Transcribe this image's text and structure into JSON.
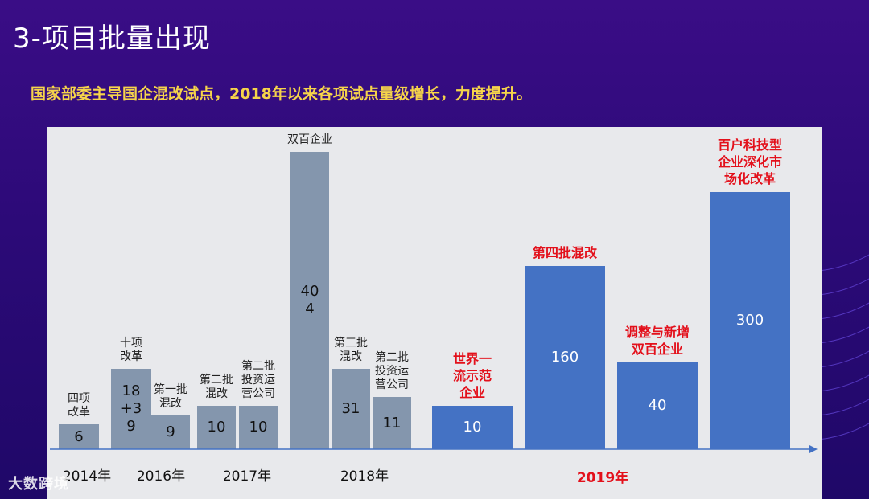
{
  "title": "3-项目批量出现",
  "subtitle": "国家部委主导国企混改试点，2018年以来各项试点量级增长，力度提升。",
  "watermark": "大数跨境",
  "chart_data": {
    "type": "bar",
    "title": "3-项目批量出现",
    "xlabel": "",
    "ylabel": "",
    "ylim": [
      0,
      404
    ],
    "grid": false,
    "bars": [
      {
        "label": "四项\n改革",
        "value": 6,
        "value_text": "6",
        "year": "2014年",
        "color": "#8496ad"
      },
      {
        "label": "十项\n改革",
        "value": 30,
        "value_text": "18\n+3\n9",
        "year": "2016年",
        "color": "#8496ad"
      },
      {
        "label": "第一批\n混改",
        "value": 9,
        "value_text": "9",
        "year": "2016年",
        "color": "#8496ad"
      },
      {
        "label": "第二批\n混改",
        "value": 10,
        "value_text": "10",
        "year": "2017年",
        "color": "#8496ad"
      },
      {
        "label": "第二批\n投资运\n营公司",
        "value": 10,
        "value_text": "10",
        "year": "2017年",
        "color": "#8496ad"
      },
      {
        "label": "双百企业",
        "value": 404,
        "value_text": "40\n4",
        "year": "2018年",
        "color": "#8496ad"
      },
      {
        "label": "第三批\n混改",
        "value": 31,
        "value_text": "31",
        "year": "2018年",
        "color": "#8496ad"
      },
      {
        "label": "第二批\n投资运\n营公司",
        "value": 11,
        "value_text": "11",
        "year": "2018年",
        "color": "#8496ad"
      },
      {
        "label": "世界一\n流示范\n企业",
        "value": 10,
        "value_text": "10",
        "year": "2019年",
        "color": "#4472c4",
        "highlight": true
      },
      {
        "label": "第四批混改",
        "value": 160,
        "value_text": "160",
        "year": "2019年",
        "color": "#4472c4",
        "highlight": true
      },
      {
        "label": "调整与新增\n双百企业",
        "value": 40,
        "value_text": "40",
        "year": "2019年",
        "color": "#4472c4",
        "highlight": true
      },
      {
        "label": "百户科技型\n企业深化市\n场化改革",
        "value": 300,
        "value_text": "300",
        "year": "2019年",
        "color": "#4472c4",
        "highlight": true
      }
    ],
    "year_labels": [
      "2014年",
      "2016年",
      "2017年",
      "2018年",
      "2019年"
    ]
  }
}
